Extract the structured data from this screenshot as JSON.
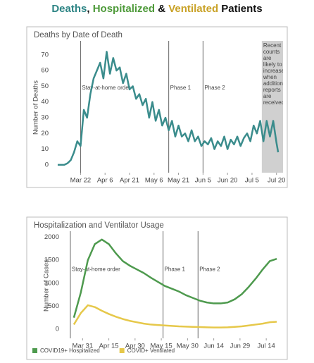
{
  "header": {
    "parts": [
      {
        "text": "Deaths",
        "color": "#2e8585"
      },
      {
        "text": ", ",
        "color": "#111"
      },
      {
        "text": "Hospitalized",
        "color": "#4e9a3a"
      },
      {
        "text": " & ",
        "color": "#111"
      },
      {
        "text": "Ventilated",
        "color": "#c9a227"
      },
      {
        "text": " Patients",
        "color": "#111"
      }
    ]
  },
  "chart_data": [
    {
      "type": "line",
      "title": "Deaths by Date of Death",
      "y_label": "Number of Deaths",
      "x": [
        "Mar 8",
        "Mar 10",
        "Mar 12",
        "Mar 14",
        "Mar 16",
        "Mar 18",
        "Mar 20",
        "Mar 22",
        "Mar 24",
        "Mar 26",
        "Mar 28",
        "Mar 30",
        "Apr 1",
        "Apr 3",
        "Apr 5",
        "Apr 7",
        "Apr 9",
        "Apr 11",
        "Apr 13",
        "Apr 15",
        "Apr 17",
        "Apr 19",
        "Apr 21",
        "Apr 23",
        "Apr 25",
        "Apr 27",
        "Apr 29",
        "May 1",
        "May 3",
        "May 5",
        "May 7",
        "May 9",
        "May 11",
        "May 13",
        "May 15",
        "May 17",
        "May 19",
        "May 21",
        "May 23",
        "May 25",
        "May 27",
        "May 29",
        "May 31",
        "Jun 2",
        "Jun 4",
        "Jun 6",
        "Jun 8",
        "Jun 10",
        "Jun 12",
        "Jun 14",
        "Jun 16",
        "Jun 18",
        "Jun 20",
        "Jun 22",
        "Jun 24",
        "Jun 26",
        "Jun 28",
        "Jun 30",
        "Jul 2",
        "Jul 4",
        "Jul 6",
        "Jul 8",
        "Jul 10",
        "Jul 12",
        "Jul 14",
        "Jul 16",
        "Jul 18",
        "Jul 20",
        "Jul 21"
      ],
      "series": [
        {
          "name": "Deaths",
          "color": "#3a8c8c",
          "values": [
            0,
            0,
            0,
            1,
            3,
            8,
            15,
            12,
            35,
            30,
            45,
            55,
            60,
            65,
            55,
            72,
            58,
            68,
            60,
            62,
            52,
            58,
            48,
            50,
            42,
            45,
            38,
            42,
            30,
            40,
            28,
            35,
            25,
            30,
            22,
            28,
            18,
            25,
            18,
            20,
            15,
            22,
            15,
            18,
            12,
            15,
            13,
            17,
            10,
            15,
            12,
            18,
            10,
            16,
            13,
            18,
            12,
            17,
            20,
            15,
            25,
            20,
            28,
            15,
            28,
            18,
            28,
            14,
            8
          ]
        }
      ],
      "xlim": [
        "Mar 5",
        "Jul 24"
      ],
      "xticks": [
        "Mar 22",
        "Apr 6",
        "Apr 21",
        "May 6",
        "May 21",
        "Jun 5",
        "Jun 20",
        "Jul 5",
        "Jul 20"
      ],
      "ylim": [
        -5,
        78
      ],
      "yticks": [
        0,
        10,
        20,
        30,
        40,
        50,
        60,
        70
      ],
      "annotations": [
        {
          "x": "Mar 22",
          "text": "Stay-at-home order"
        },
        {
          "x": "May 15",
          "text": "Phase 1"
        },
        {
          "x": "Jun 5",
          "text": "Phase 2"
        },
        {
          "x": "Jul 11",
          "x_end": "Jul 24",
          "text": "Recent counts are likely to increase when additional reports are received"
        }
      ]
    },
    {
      "type": "line",
      "title": "Hospitalization and Ventilator Usage",
      "y_label": "Number of Cases",
      "x": [
        "Mar 26",
        "Mar 30",
        "Apr 3",
        "Apr 7",
        "Apr 11",
        "Apr 15",
        "Apr 19",
        "Apr 23",
        "Apr 27",
        "May 1",
        "May 5",
        "May 9",
        "May 13",
        "May 17",
        "May 21",
        "May 25",
        "May 29",
        "Jun 2",
        "Jun 6",
        "Jun 10",
        "Jun 14",
        "Jun 18",
        "Jun 22",
        "Jun 26",
        "Jun 30",
        "Jul 4",
        "Jul 8",
        "Jul 12",
        "Jul 16",
        "Jul 20"
      ],
      "series": [
        {
          "name": "COVID19+ Hospitalized",
          "color": "#4e9a4e",
          "values": [
            250,
            800,
            1500,
            1850,
            1950,
            1850,
            1650,
            1480,
            1380,
            1300,
            1220,
            1120,
            1030,
            940,
            880,
            820,
            740,
            680,
            620,
            580,
            560,
            560,
            580,
            650,
            760,
            920,
            1100,
            1300,
            1480,
            1530
          ]
        },
        {
          "name": "COVID+ Ventilated",
          "color": "#e6c84a",
          "values": [
            100,
            350,
            520,
            480,
            400,
            330,
            270,
            220,
            180,
            150,
            120,
            100,
            90,
            80,
            70,
            60,
            55,
            50,
            45,
            40,
            35,
            35,
            40,
            50,
            60,
            80,
            100,
            120,
            150,
            160
          ]
        }
      ],
      "xlim": [
        "Mar 20",
        "Jul 24"
      ],
      "xticks": [
        "Mar 31",
        "Apr 15",
        "Apr 30",
        "May 15",
        "May 30",
        "Jun 14",
        "Jun 29",
        "Jul 14"
      ],
      "ylim": [
        -200,
        2100
      ],
      "yticks": [
        0,
        500,
        1000,
        1500,
        2000
      ],
      "annotations": [
        {
          "x": "Mar 24",
          "text": "Stay-at-home order"
        },
        {
          "x": "May 16",
          "text": "Phase 1"
        },
        {
          "x": "Jun 5",
          "text": "Phase 2"
        }
      ],
      "legend": "bottom-left"
    }
  ]
}
